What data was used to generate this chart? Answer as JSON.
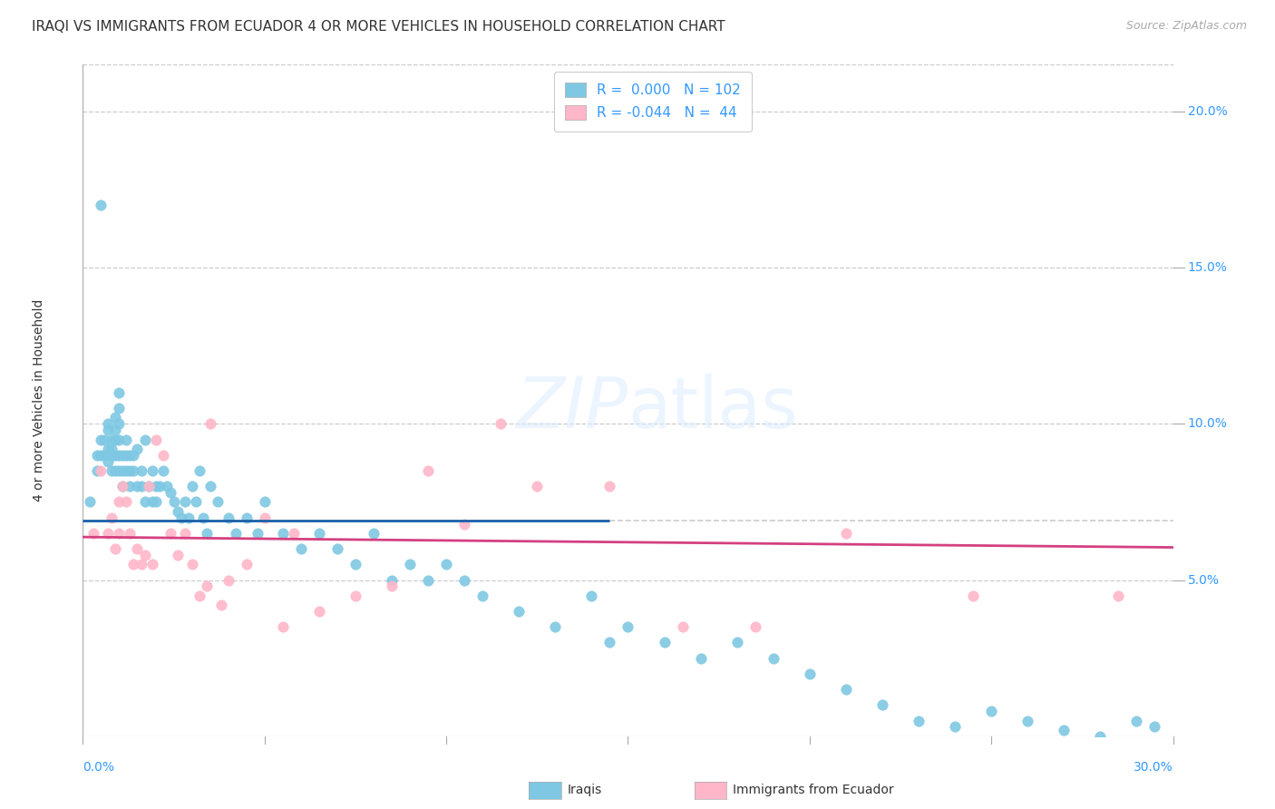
{
  "title": "IRAQI VS IMMIGRANTS FROM ECUADOR 4 OR MORE VEHICLES IN HOUSEHOLD CORRELATION CHART",
  "source": "Source: ZipAtlas.com",
  "ylabel": "4 or more Vehicles in Household",
  "xlim": [
    0.0,
    30.0
  ],
  "ylim": [
    0.0,
    21.5
  ],
  "ytick_vals": [
    5.0,
    10.0,
    15.0,
    20.0
  ],
  "iraqi_color": "#7ec8e3",
  "ecuador_color": "#ffb6c8",
  "iraqi_line_color": "#1a5fa8",
  "ecuador_line_color": "#d44080",
  "background_color": "#ffffff",
  "title_fontsize": 11,
  "source_fontsize": 9,
  "axis_label_color": "#3399ff",
  "text_color": "#333333",
  "grid_color": "#cccccc",
  "iraqi_x": [
    0.2,
    0.4,
    0.4,
    0.5,
    0.5,
    0.5,
    0.6,
    0.6,
    0.7,
    0.7,
    0.7,
    0.7,
    0.8,
    0.8,
    0.8,
    0.8,
    0.9,
    0.9,
    0.9,
    0.9,
    0.9,
    1.0,
    1.0,
    1.0,
    1.0,
    1.0,
    1.0,
    1.1,
    1.1,
    1.1,
    1.2,
    1.2,
    1.2,
    1.3,
    1.3,
    1.3,
    1.4,
    1.4,
    1.5,
    1.5,
    1.6,
    1.6,
    1.7,
    1.7,
    1.8,
    1.9,
    1.9,
    2.0,
    2.0,
    2.1,
    2.2,
    2.3,
    2.4,
    2.5,
    2.6,
    2.7,
    2.8,
    2.9,
    3.0,
    3.1,
    3.2,
    3.3,
    3.4,
    3.5,
    3.7,
    4.0,
    4.2,
    4.5,
    4.8,
    5.0,
    5.5,
    6.0,
    6.5,
    7.0,
    7.5,
    8.0,
    8.5,
    9.0,
    9.5,
    10.0,
    10.5,
    11.0,
    12.0,
    13.0,
    14.0,
    14.5,
    15.0,
    16.0,
    17.0,
    18.0,
    19.0,
    20.0,
    21.0,
    22.0,
    23.0,
    24.0,
    25.0,
    26.0,
    27.0,
    28.0,
    29.0,
    29.5
  ],
  "iraqi_y": [
    7.5,
    9.0,
    8.5,
    17.0,
    9.5,
    9.0,
    9.5,
    9.0,
    10.0,
    9.8,
    9.2,
    8.8,
    9.5,
    9.2,
    9.0,
    8.5,
    10.2,
    9.8,
    9.5,
    9.0,
    8.5,
    11.0,
    10.5,
    10.0,
    9.5,
    9.0,
    8.5,
    9.0,
    8.5,
    8.0,
    9.5,
    9.0,
    8.5,
    9.0,
    8.5,
    8.0,
    9.0,
    8.5,
    9.2,
    8.0,
    8.5,
    8.0,
    9.5,
    7.5,
    8.0,
    7.5,
    8.5,
    8.0,
    7.5,
    8.0,
    8.5,
    8.0,
    7.8,
    7.5,
    7.2,
    7.0,
    7.5,
    7.0,
    8.0,
    7.5,
    8.5,
    7.0,
    6.5,
    8.0,
    7.5,
    7.0,
    6.5,
    7.0,
    6.5,
    7.5,
    6.5,
    6.0,
    6.5,
    6.0,
    5.5,
    6.5,
    5.0,
    5.5,
    5.0,
    5.5,
    5.0,
    4.5,
    4.0,
    3.5,
    4.5,
    3.0,
    3.5,
    3.0,
    2.5,
    3.0,
    2.5,
    2.0,
    1.5,
    1.0,
    0.5,
    0.3,
    0.8,
    0.5,
    0.2,
    0.0,
    0.5,
    0.3
  ],
  "ecuador_x": [
    0.3,
    0.5,
    0.7,
    0.8,
    0.9,
    1.0,
    1.0,
    1.1,
    1.2,
    1.3,
    1.4,
    1.5,
    1.6,
    1.7,
    1.8,
    1.9,
    2.0,
    2.2,
    2.4,
    2.6,
    2.8,
    3.0,
    3.2,
    3.4,
    3.5,
    3.8,
    4.0,
    4.5,
    5.0,
    5.5,
    5.8,
    6.5,
    7.5,
    8.5,
    9.5,
    10.5,
    11.5,
    12.5,
    14.5,
    16.5,
    18.5,
    21.0,
    24.5,
    28.5
  ],
  "ecuador_y": [
    6.5,
    8.5,
    6.5,
    7.0,
    6.0,
    7.5,
    6.5,
    8.0,
    7.5,
    6.5,
    5.5,
    6.0,
    5.5,
    5.8,
    8.0,
    5.5,
    9.5,
    9.0,
    6.5,
    5.8,
    6.5,
    5.5,
    4.5,
    4.8,
    10.0,
    4.2,
    5.0,
    5.5,
    7.0,
    3.5,
    6.5,
    4.0,
    4.5,
    4.8,
    8.5,
    6.8,
    10.0,
    8.0,
    8.0,
    3.5,
    3.5,
    6.5,
    4.5,
    4.5
  ]
}
